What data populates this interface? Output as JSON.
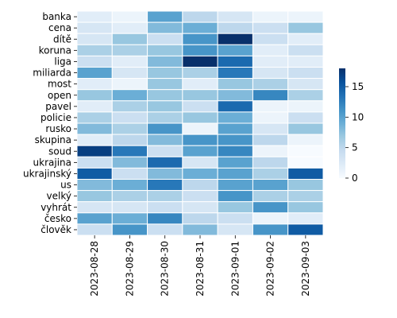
{
  "chart_data": {
    "type": "heatmap",
    "title": "",
    "xlabel": "",
    "ylabel": "",
    "x": [
      "2023-08-28",
      "2023-08-29",
      "2023-08-30",
      "2023-08-31",
      "2023-09-01",
      "2023-09-02",
      "2023-09-03"
    ],
    "y": [
      "banka",
      "cena",
      "dítě",
      "koruna",
      "liga",
      "miliarda",
      "most",
      "open",
      "pavel",
      "policie",
      "rusko",
      "skupina",
      "soud",
      "ukrajina",
      "ukrajinský",
      "us",
      "velký",
      "vyhrát",
      "česko",
      "člověk"
    ],
    "values": [
      [
        2,
        1,
        10,
        5,
        3,
        1,
        1
      ],
      [
        3,
        2,
        8,
        9,
        5,
        4,
        7
      ],
      [
        3,
        7,
        4,
        11,
        18,
        4,
        2
      ],
      [
        6,
        6,
        7,
        11,
        10,
        2,
        4
      ],
      [
        4,
        2,
        8,
        19,
        14,
        2,
        2
      ],
      [
        10,
        3,
        7,
        6,
        13,
        3,
        4
      ],
      [
        2,
        1,
        7,
        2,
        7,
        6,
        3
      ],
      [
        7,
        9,
        7,
        7,
        8,
        12,
        6
      ],
      [
        2,
        6,
        7,
        4,
        14,
        1,
        1
      ],
      [
        6,
        4,
        6,
        7,
        9,
        1,
        4
      ],
      [
        8,
        6,
        11,
        1,
        10,
        3,
        7
      ],
      [
        2,
        5,
        8,
        11,
        11,
        5,
        1
      ],
      [
        17,
        13,
        4,
        10,
        12,
        1,
        0
      ],
      [
        4,
        8,
        14,
        3,
        10,
        5,
        0
      ],
      [
        15,
        4,
        8,
        9,
        10,
        6,
        15
      ],
      [
        8,
        9,
        13,
        5,
        10,
        10,
        7
      ],
      [
        7,
        6,
        6,
        4,
        11,
        6,
        6
      ],
      [
        3,
        3,
        4,
        3,
        7,
        11,
        7
      ],
      [
        10,
        9,
        12,
        5,
        4,
        1,
        2
      ],
      [
        4,
        11,
        4,
        8,
        3,
        11,
        15
      ]
    ],
    "colorbar": {
      "min": 0,
      "max": 18,
      "ticks": [
        0,
        5,
        10,
        15
      ]
    },
    "colormap": [
      "#f7fbff",
      "#deebf7",
      "#c6dbef",
      "#9ecae1",
      "#6baed6",
      "#4292c6",
      "#2171b5",
      "#08519c",
      "#08306b"
    ],
    "grid": true,
    "legend": "colorbar-right"
  }
}
